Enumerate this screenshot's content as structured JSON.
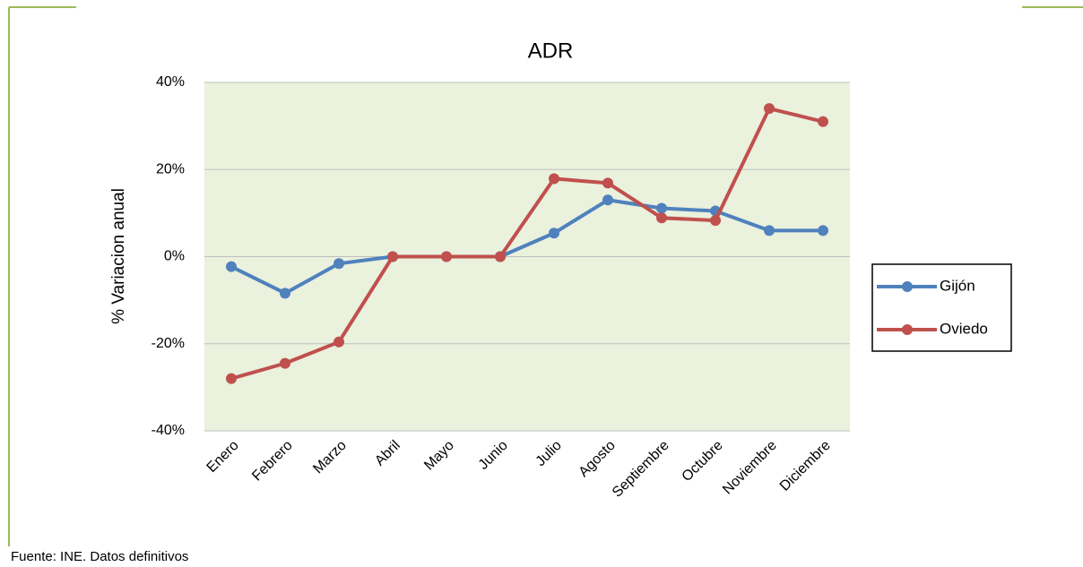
{
  "chart_data": {
    "type": "line",
    "title": "ADR",
    "y_label": "% Variacion anual",
    "categories": [
      "Enero",
      "Febrero",
      "Marzo",
      "Abril",
      "Mayo",
      "Junio",
      "Julio",
      "Agosto",
      "Septiembre",
      "Octubre",
      "Noviembre",
      "Diciembre"
    ],
    "series": [
      {
        "name": "Gijón",
        "color": "#4f81bd",
        "values": [
          -2.3,
          -8.4,
          -1.6,
          0,
          0,
          0,
          5.4,
          13,
          11.1,
          10.5,
          6,
          6
        ]
      },
      {
        "name": "Oviedo",
        "color": "#c0504d",
        "values": [
          -28,
          -24.5,
          -19.6,
          0,
          0,
          0,
          17.9,
          16.9,
          8.9,
          8.3,
          34,
          31
        ]
      }
    ],
    "ylim": [
      -40,
      40
    ],
    "yticks": [
      {
        "value": -40,
        "label": "-40%"
      },
      {
        "value": -20,
        "label": "-20%"
      },
      {
        "value": 0,
        "label": "0%"
      },
      {
        "value": 20,
        "label": "20%"
      },
      {
        "value": 40,
        "label": "40%"
      }
    ],
    "grid": true,
    "legend": "right",
    "plot_background": "#eaf1dd",
    "source": "Fuente: INE. Datos definitivos"
  }
}
